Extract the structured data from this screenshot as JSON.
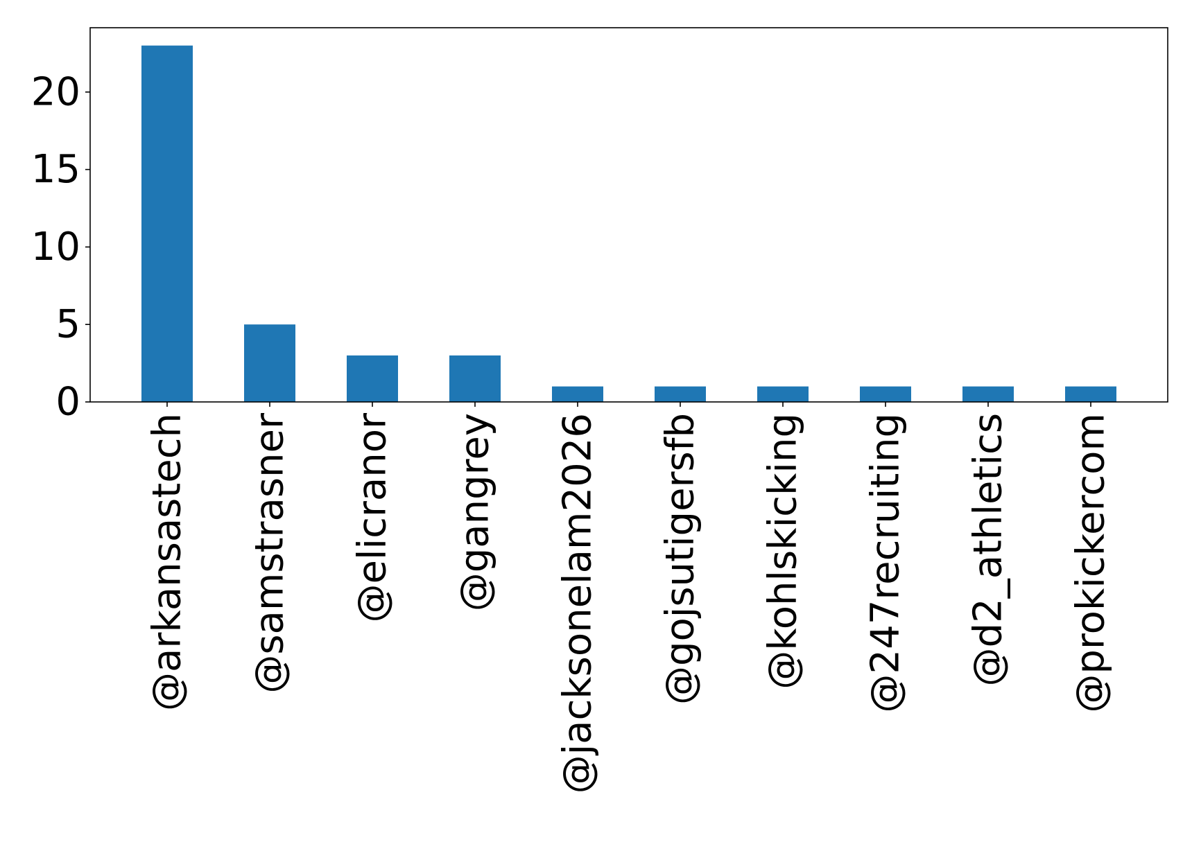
{
  "chart_data": {
    "type": "bar",
    "title": "",
    "xlabel": "",
    "ylabel": "",
    "categories": [
      "@arkansastech",
      "@samstrasner",
      "@elicranor",
      "@gangrey",
      "@jacksonelam2026",
      "@gojsutigersfb",
      "@kohlskicking",
      "@247recruiting",
      "@d2_athletics",
      "@prokickercom"
    ],
    "values": [
      23,
      5,
      3,
      3,
      1,
      1,
      1,
      1,
      1,
      1
    ],
    "ylim": [
      0,
      24.15
    ],
    "yticks": [
      0,
      5,
      10,
      15,
      20
    ],
    "bar_color": "#1f77b4",
    "grid": false,
    "legend": "none"
  }
}
